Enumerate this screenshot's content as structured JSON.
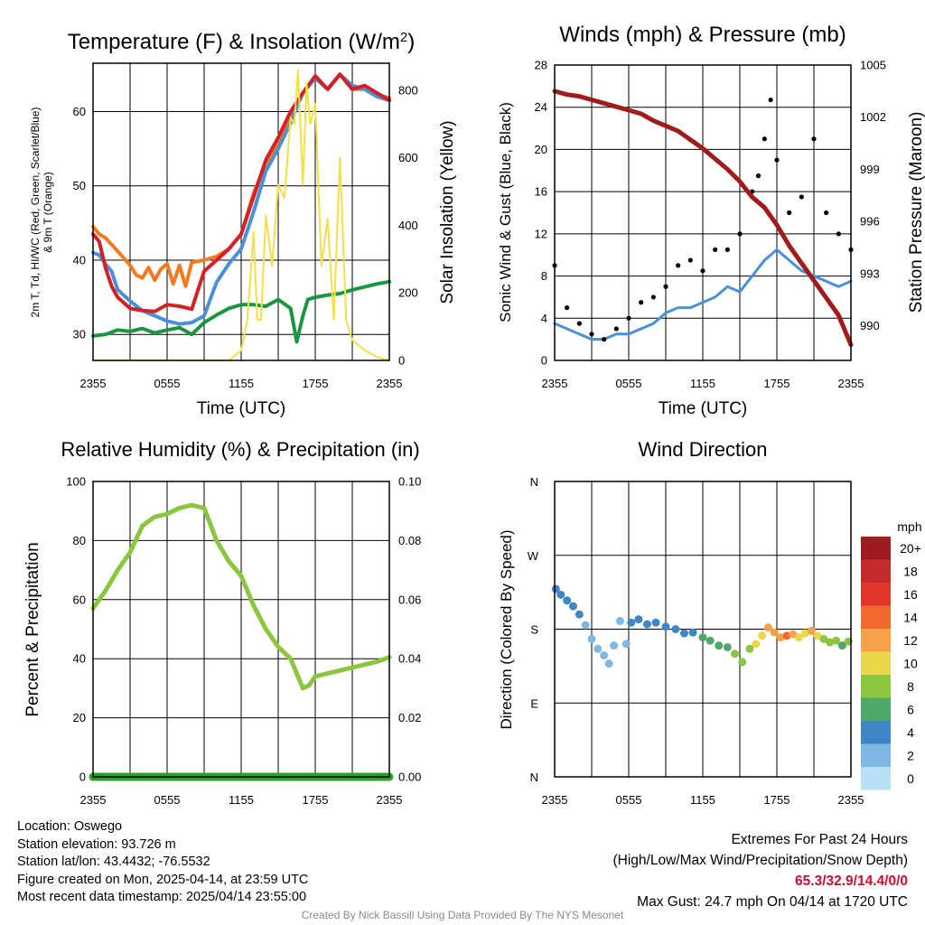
{
  "panels": {
    "temperature": {
      "title": "Temperature (F) & Insolation (W/m²)",
      "title_prefix": "Temperature (F) & Insolation (W/m",
      "title_sup": "2",
      "title_suffix": ")",
      "xlabel": "Time (UTC)",
      "ylabel_left_line1": "2m T, Td, HI/WC (Red, Green, Scarlet/Blue)",
      "ylabel_left_line2": "& 9m T (Orange)",
      "ylabel_right": "Solar Insolation (Yellow)"
    },
    "winds": {
      "title": "Winds (mph) & Pressure (mb)",
      "xlabel": "Time (UTC)",
      "ylabel_left": "Sonic Wind & Gust (Blue, Black)",
      "ylabel_right": "Station Pressure (Maroon)"
    },
    "humidity": {
      "title": "Relative Humidity (%) & Precipitation (in)",
      "ylabel_left": "Percent & Precipitation"
    },
    "direction": {
      "title": "Wind Direction",
      "ylabel_left": "Direction (Colored By Speed)",
      "legend_unit": "mph"
    }
  },
  "chart_data": [
    {
      "id": "temperature",
      "type": "line",
      "title": "Temperature (F) & Insolation (W/m2)",
      "xlabel": "Time (UTC)",
      "ylabel": "2m T, Td, HI/WC (Red, Green, Scarlet/Blue) & 9m T (Orange)",
      "y2label": "Solar Insolation (Yellow)",
      "x_ticks": [
        "2355",
        "0555",
        "1155",
        "1755",
        "2355"
      ],
      "x_hours": [
        0,
        24
      ],
      "ylim": [
        26.5,
        66.5
      ],
      "y_ticks": [
        30,
        40,
        50,
        60
      ],
      "y2lim": [
        0,
        880
      ],
      "y2_ticks": [
        0,
        200,
        400,
        600,
        800
      ],
      "grid": true,
      "series": [
        {
          "color": "#1a9641",
          "x": [
            0,
            1,
            2,
            3,
            4,
            5,
            6,
            7,
            8,
            9,
            10,
            11,
            12,
            13,
            14,
            15,
            16,
            16.5,
            17,
            17.4,
            18,
            19,
            20,
            21,
            22,
            23,
            24
          ],
          "values": [
            29.8,
            30.0,
            30.6,
            30.4,
            30.8,
            30.2,
            30.6,
            30.9,
            30.0,
            31.6,
            32.6,
            33.5,
            34.0,
            34.0,
            33.8,
            34.7,
            33.5,
            29.0,
            32.5,
            34.7,
            35.0,
            35.3,
            35.5,
            36.0,
            36.4,
            36.8,
            37.1
          ]
        },
        {
          "color": "#f47a1f",
          "x": [
            0,
            0.5,
            1,
            2,
            3,
            3.5,
            4,
            4.5,
            5,
            5.5,
            6,
            6.5,
            7,
            7.5,
            8,
            9,
            10,
            11,
            12,
            13,
            14,
            15,
            16,
            17,
            18,
            19,
            20,
            21,
            22,
            23,
            24
          ],
          "values": [
            44.5,
            43.5,
            43.0,
            41.2,
            39.3,
            38.0,
            37.6,
            39.0,
            37.3,
            38.8,
            39.5,
            36.8,
            39.3,
            36.5,
            39.7,
            40.0,
            40.5,
            41.5,
            43.5,
            49.0,
            53.0,
            55.5,
            59.5,
            62.5,
            64.5,
            63.0,
            65.0,
            63.0,
            63.0,
            62.3,
            61.8
          ]
        },
        {
          "color": "#4a90d9",
          "x": [
            0,
            0.5,
            1,
            1.5,
            2,
            3,
            4,
            5,
            6,
            7,
            8,
            9,
            10,
            11,
            12,
            13,
            14,
            15,
            16,
            17,
            18,
            19,
            20,
            21,
            22,
            23,
            24
          ],
          "values": [
            41.0,
            40.7,
            39.5,
            38.5,
            36.0,
            34.5,
            33.2,
            32.5,
            31.8,
            31.4,
            31.6,
            32.5,
            37.0,
            39.5,
            41.5,
            46.5,
            52.0,
            55.0,
            58.5,
            62.5,
            64.5,
            63.0,
            65.0,
            63.5,
            63.0,
            62.0,
            61.5
          ]
        },
        {
          "color": "#d42027",
          "x": [
            0,
            0.5,
            1,
            1.5,
            2,
            3,
            4,
            5,
            6,
            7,
            8,
            8.5,
            9,
            10,
            11,
            12,
            13,
            14,
            15,
            16,
            17,
            18,
            19,
            20,
            21,
            22,
            23,
            24
          ],
          "values": [
            43.5,
            42.5,
            39.0,
            36.5,
            35.0,
            33.5,
            33.2,
            33.1,
            34.0,
            33.8,
            33.4,
            36.0,
            38.5,
            40.0,
            41.5,
            43.5,
            48.5,
            53.5,
            56.5,
            60.0,
            62.5,
            64.8,
            63.0,
            65.0,
            63.0,
            63.5,
            62.5,
            61.5
          ]
        },
        {
          "color": "#f2e04a",
          "axis": "y2",
          "x": [
            0,
            11,
            12,
            12.5,
            13,
            13.3,
            13.6,
            14,
            14.5,
            15,
            15.5,
            16,
            16.3,
            16.6,
            17,
            17.3,
            17.6,
            18,
            18.5,
            19,
            19.5,
            20,
            20.5,
            21,
            22,
            23,
            24
          ],
          "values": [
            0,
            0,
            30,
            120,
            380,
            120,
            120,
            430,
            280,
            520,
            480,
            720,
            700,
            860,
            520,
            820,
            700,
            760,
            280,
            420,
            120,
            600,
            120,
            60,
            30,
            10,
            0
          ]
        }
      ]
    },
    {
      "id": "winds",
      "type": "line",
      "title": "Winds (mph) & Pressure (mb)",
      "xlabel": "Time (UTC)",
      "ylabel": "Sonic Wind & Gust (Blue, Black)",
      "y2label": "Station Pressure (Maroon)",
      "x_ticks": [
        "2355",
        "0555",
        "1155",
        "1755",
        "2355"
      ],
      "x_hours": [
        0,
        24
      ],
      "ylim": [
        0,
        28
      ],
      "y_ticks": [
        0,
        4,
        8,
        12,
        16,
        20,
        24,
        28
      ],
      "y2lim": [
        988,
        1005
      ],
      "y2_ticks": [
        990,
        993,
        996,
        999,
        1002,
        1005
      ],
      "grid": true,
      "series": [
        {
          "color": "#4a90d9",
          "name": "",
          "x": [
            0,
            1,
            2,
            3,
            4,
            5,
            6,
            7,
            8,
            9,
            10,
            11,
            12,
            13,
            14,
            15,
            16,
            17,
            18,
            19,
            20,
            21,
            22,
            23,
            24
          ],
          "values": [
            3.5,
            3.0,
            2.5,
            2.0,
            2.0,
            2.5,
            2.5,
            3.0,
            3.5,
            4.5,
            5.0,
            5.0,
            5.5,
            6.0,
            7.0,
            6.5,
            8.0,
            9.5,
            10.5,
            9.5,
            8.5,
            8.0,
            7.5,
            7.0,
            7.5
          ]
        },
        {
          "color": "#000000",
          "style": "points",
          "x": [
            0,
            1,
            2,
            3,
            4,
            5,
            6,
            7,
            8,
            9,
            10,
            11,
            12,
            13,
            14,
            15,
            16,
            16.5,
            17,
            17.5,
            18,
            19,
            20,
            21,
            22,
            23,
            24
          ],
          "values": [
            9.0,
            5.0,
            3.5,
            2.5,
            2.0,
            3.0,
            4.0,
            5.5,
            6.0,
            7.0,
            9.0,
            9.5,
            8.5,
            10.5,
            10.5,
            12.0,
            16.0,
            17.5,
            21.0,
            24.7,
            19.0,
            14.0,
            15.5,
            21.0,
            14.0,
            12.0,
            10.5
          ]
        },
        {
          "color": "#a01c1c",
          "axis": "y2",
          "x": [
            0,
            1,
            2,
            3,
            4,
            5,
            6,
            7,
            8,
            9,
            10,
            11,
            12,
            13,
            14,
            15,
            16,
            17,
            18,
            19,
            20,
            21,
            22,
            23,
            24
          ],
          "values": [
            1003.5,
            1003.3,
            1003.2,
            1003.0,
            1002.8,
            1002.6,
            1002.4,
            1002.2,
            1001.8,
            1001.5,
            1001.2,
            1000.7,
            1000.2,
            999.6,
            999.0,
            998.3,
            997.4,
            996.8,
            995.8,
            994.6,
            993.6,
            992.6,
            991.6,
            990.6,
            988.9
          ]
        }
      ]
    },
    {
      "id": "humidity",
      "type": "line",
      "title": "Relative Humidity (%) & Precipitation (in)",
      "ylabel": "Percent & Precipitation",
      "x_ticks": [
        "2355",
        "0555",
        "1155",
        "1755",
        "2355"
      ],
      "x_hours": [
        0,
        24
      ],
      "ylim": [
        0,
        100
      ],
      "y_ticks": [
        0,
        20,
        40,
        60,
        80,
        100
      ],
      "y2lim": [
        0,
        0.1
      ],
      "y2_ticks": [
        "0.00",
        "0.02",
        "0.04",
        "0.06",
        "0.08",
        "0.10"
      ],
      "grid": true,
      "series": [
        {
          "color": "#8cc63f",
          "x": [
            0,
            1,
            2,
            3,
            4,
            5,
            6,
            7,
            8,
            9,
            10,
            11,
            12,
            13,
            14,
            15,
            16,
            17,
            17.5,
            18,
            19,
            20,
            21,
            22,
            23,
            24
          ],
          "values": [
            57,
            63,
            70,
            76,
            85,
            88,
            89,
            91,
            92,
            91,
            80,
            73,
            68,
            58,
            50,
            44,
            40,
            30,
            31,
            34,
            35,
            36,
            37,
            38,
            39,
            40.5
          ]
        },
        {
          "color": "#2ca02c",
          "axis": "y2",
          "x": [
            0,
            24
          ],
          "values": [
            0,
            0
          ]
        }
      ]
    },
    {
      "id": "direction",
      "type": "scatter",
      "title": "Wind Direction",
      "ylabel": "Direction (Colored By Speed)",
      "x_ticks": [
        "2355",
        "0555",
        "1155",
        "1755",
        "2355"
      ],
      "x_hours": [
        0,
        24
      ],
      "y_ticks": [
        "E",
        "S",
        "W",
        "N"
      ],
      "ylim_deg": [
        0,
        360
      ],
      "y_tick_values": [
        90,
        180,
        270,
        360
      ],
      "grid": true,
      "legend": {
        "title": "mph",
        "placement": "right",
        "labels": [
          "20+",
          "18",
          "16",
          "14",
          "12",
          "10",
          "8",
          "6",
          "4",
          "2",
          "0"
        ],
        "colors": [
          "#9e1b1f",
          "#c72a2a",
          "#e0362c",
          "#f26a30",
          "#f7a24a",
          "#e8d84a",
          "#8cc63f",
          "#4fa86a",
          "#3f86c6",
          "#7fb8e3",
          "#b9e0f7"
        ]
      },
      "points": [
        {
          "x": 0.1,
          "deg": 229,
          "speed": 3
        },
        {
          "x": 0.5,
          "deg": 222,
          "speed": 3
        },
        {
          "x": 1.0,
          "deg": 215,
          "speed": 3
        },
        {
          "x": 1.5,
          "deg": 208,
          "speed": 4
        },
        {
          "x": 2.0,
          "deg": 198,
          "speed": 3
        },
        {
          "x": 2.5,
          "deg": 185,
          "speed": 2
        },
        {
          "x": 3.0,
          "deg": 168,
          "speed": 2
        },
        {
          "x": 3.5,
          "deg": 156,
          "speed": 1
        },
        {
          "x": 4.0,
          "deg": 148,
          "speed": 2
        },
        {
          "x": 4.4,
          "deg": 138,
          "speed": 2
        },
        {
          "x": 4.8,
          "deg": 160,
          "speed": 2
        },
        {
          "x": 5.3,
          "deg": 190,
          "speed": 2
        },
        {
          "x": 5.8,
          "deg": 162,
          "speed": 2
        },
        {
          "x": 6.2,
          "deg": 188,
          "speed": 3
        },
        {
          "x": 6.8,
          "deg": 192,
          "speed": 3
        },
        {
          "x": 7.5,
          "deg": 186,
          "speed": 3
        },
        {
          "x": 8.2,
          "deg": 188,
          "speed": 3
        },
        {
          "x": 9.0,
          "deg": 183,
          "speed": 3
        },
        {
          "x": 9.8,
          "deg": 180,
          "speed": 4
        },
        {
          "x": 10.5,
          "deg": 175,
          "speed": 4
        },
        {
          "x": 11.2,
          "deg": 176,
          "speed": 4
        },
        {
          "x": 12.0,
          "deg": 170,
          "speed": 5
        },
        {
          "x": 12.6,
          "deg": 166,
          "speed": 5
        },
        {
          "x": 13.3,
          "deg": 160,
          "speed": 6
        },
        {
          "x": 14.0,
          "deg": 158,
          "speed": 6
        },
        {
          "x": 14.6,
          "deg": 150,
          "speed": 7
        },
        {
          "x": 15.2,
          "deg": 140,
          "speed": 7
        },
        {
          "x": 15.8,
          "deg": 156,
          "speed": 8
        },
        {
          "x": 16.3,
          "deg": 162,
          "speed": 9
        },
        {
          "x": 16.8,
          "deg": 172,
          "speed": 10
        },
        {
          "x": 17.3,
          "deg": 182,
          "speed": 12
        },
        {
          "x": 17.8,
          "deg": 176,
          "speed": 11
        },
        {
          "x": 18.3,
          "deg": 170,
          "speed": 12
        },
        {
          "x": 18.8,
          "deg": 172,
          "speed": 13
        },
        {
          "x": 19.3,
          "deg": 174,
          "speed": 11
        },
        {
          "x": 19.8,
          "deg": 170,
          "speed": 9
        },
        {
          "x": 20.3,
          "deg": 175,
          "speed": 10
        },
        {
          "x": 20.8,
          "deg": 178,
          "speed": 12
        },
        {
          "x": 21.3,
          "deg": 172,
          "speed": 9
        },
        {
          "x": 21.8,
          "deg": 168,
          "speed": 8
        },
        {
          "x": 22.3,
          "deg": 164,
          "speed": 7
        },
        {
          "x": 22.8,
          "deg": 166,
          "speed": 7
        },
        {
          "x": 23.3,
          "deg": 160,
          "speed": 6
        },
        {
          "x": 23.8,
          "deg": 165,
          "speed": 7
        }
      ]
    }
  ],
  "station": {
    "location": "Location: Oswego",
    "elevation": "Station elevation: 93.726 m",
    "latlon": "Station lat/lon: 43.4432; -76.5532",
    "created": "Figure created on Mon, 2025-04-14, at 23:59 UTC",
    "recent": "Most recent data timestamp: 2025/04/14 23:55:00"
  },
  "extremes": {
    "heading": "Extremes For Past 24 Hours",
    "subheading": "(High/Low/Max Wind/Precipitation/Snow Depth)",
    "values": "65.3/32.9/14.4/0/0",
    "max_gust": "Max Gust: 24.7 mph On 04/14 at 1720 UTC"
  },
  "footer": "Created By Nick Bassill Using Data Provided By The NYS Mesonet"
}
